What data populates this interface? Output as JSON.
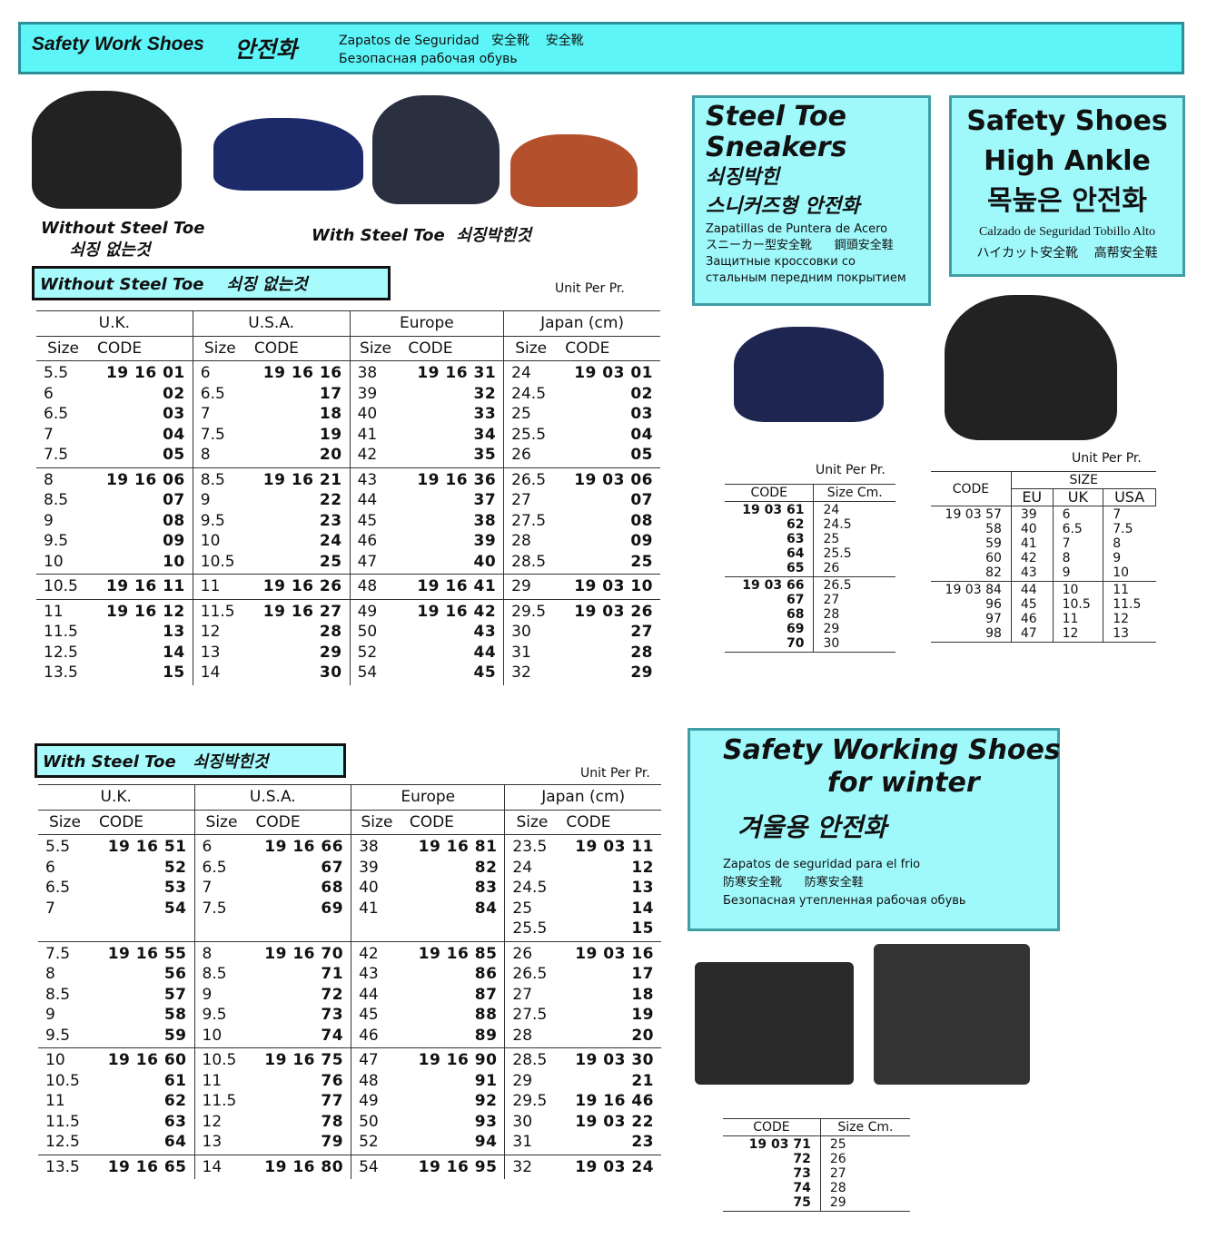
{
  "header": {
    "title": "Safety Work Shoes",
    "title_ko": "안전화",
    "subtitle": "Zapatos de Seguridad   安全靴    安全靴\nБезопасная рабочая обувь"
  },
  "labels": {
    "without": "Without Steel Toe\n     쇠징 없는것",
    "with": "With Steel Toe  쇠징박힌것",
    "unit": "Unit Per Pr."
  },
  "table1": {
    "bar": "Without Steel Toe    쇠징 없는것",
    "groups_header": [
      "U.K.",
      "U.S.A.",
      "Europe",
      "Japan (cm)"
    ],
    "cols": [
      "Size",
      "CODE",
      "Size",
      "CODE",
      "Size",
      "CODE",
      "Size",
      "CODE"
    ],
    "rows": [
      [
        "5.5\n6\n6.5\n7\n7.5",
        "19 16 01\n02\n03\n04\n05",
        "6\n6.5\n7\n7.5\n8",
        "19 16 16\n17\n18\n19\n20",
        "38\n39\n40\n41\n42",
        "19 16 31\n32\n33\n34\n35",
        "24\n24.5\n25\n25.5\n26",
        "19 03 01\n02\n03\n04\n05"
      ],
      [
        "8\n8.5\n9\n9.5\n10",
        "19 16 06\n07\n08\n09\n10",
        "8.5\n9\n9.5\n10\n10.5",
        "19 16 21\n22\n23\n24\n25",
        "43\n44\n45\n46\n47",
        "19 16 36\n37\n38\n39\n40",
        "26.5\n27\n27.5\n28\n28.5",
        "19 03 06\n07\n08\n09\n25"
      ],
      [
        "10.5",
        "19 16 11",
        "11",
        "19 16 26",
        "48",
        "19 16 41",
        "29",
        "19 03 10"
      ],
      [
        "11\n11.5\n12.5\n13.5",
        "19 16 12\n13\n14\n15",
        "11.5\n12\n13\n14",
        "19 16 27\n28\n29\n30",
        "49\n50\n52\n54",
        "19 16 42\n43\n44\n45",
        "29.5\n30\n31\n32",
        "19 03 26\n27\n28\n29"
      ]
    ]
  },
  "table2": {
    "bar": "With Steel Toe   쇠징박힌것",
    "rows": [
      [
        "5.5\n6\n6.5\n7",
        "19 16 51\n52\n53\n54",
        "6\n6.5\n7\n7.5",
        "19 16 66\n67\n68\n69",
        "38\n39\n40\n41",
        "19 16 81\n82\n83\n84",
        "23.5\n24\n24.5\n25\n25.5",
        "19 03 11\n12\n13\n14\n15"
      ],
      [
        "7.5\n8\n8.5\n9\n9.5",
        "19 16 55\n56\n57\n58\n59",
        "8\n8.5\n9\n9.5\n10",
        "19 16 70\n71\n72\n73\n74",
        "42\n43\n44\n45\n46",
        "19 16 85\n86\n87\n88\n89",
        "26\n26.5\n27\n27.5\n28",
        "19 03 16\n17\n18\n19\n20"
      ],
      [
        "10\n10.5\n11\n11.5\n12.5",
        "19 16 60\n61\n62\n63\n64",
        "10.5\n11\n11.5\n12\n13",
        "19 16 75\n76\n77\n78\n79",
        "47\n48\n49\n50\n52",
        "19 16 90\n91\n92\n93\n94",
        "28.5\n29\n29.5\n30\n31",
        "19 03 30\n21\n19 16 46\n19 03 22\n23"
      ],
      [
        "13.5",
        "19 16 65",
        "14",
        "19 16 80",
        "54",
        "19 16 95",
        "32",
        "19 03 24"
      ]
    ]
  },
  "sneakers": {
    "title": "Steel Toe\nSneakers",
    "ko": "쇠징박힌\n스니커즈형 안전화",
    "sub": "Zapatillas de Puntera de Acero\nスニーカー型安全靴      鋼頭安全鞋\nЗащитные кроссовки со\nстальным передним покрытием",
    "cols": [
      "CODE",
      "Size Cm."
    ],
    "rows": [
      [
        "19 03 61\n62\n63\n64\n65",
        "24\n24.5\n25\n25.5\n26"
      ],
      [
        "19 03 66\n67\n68\n69\n70",
        "26.5\n27\n28\n29\n30"
      ]
    ]
  },
  "highankle": {
    "title": "Safety Shoes\nHigh Ankle",
    "ko": "목높은 안전화",
    "sub": "Calzado de Seguridad Tobillo Alto\nハイカット安全靴     高帮安全鞋",
    "cols": [
      "CODE",
      "SIZE",
      "EU",
      "UK",
      "USA"
    ],
    "rows": [
      [
        "19 03 57\n58\n59\n60\n82",
        "39\n40\n41\n42\n43",
        "6\n6.5\n7\n8\n9",
        "7\n7.5\n8\n9\n10"
      ],
      [
        "19 03 84\n96\n97\n98",
        "44\n45\n46\n47",
        "10\n10.5\n11\n12",
        "11\n11.5\n12\n13"
      ]
    ]
  },
  "winter": {
    "title": "Safety Working Shoes\n           for winter",
    "ko": "겨울용 안전화",
    "sub": "Zapatos de seguridad para el frio\n防寒安全靴      防寒安全鞋\nБезопасная утепленная рабочая обувь",
    "cols": [
      "CODE",
      "Size Cm."
    ],
    "rows": [
      [
        "19 03 71\n72\n73\n74\n75",
        "25\n26\n27\n28\n29"
      ]
    ]
  }
}
